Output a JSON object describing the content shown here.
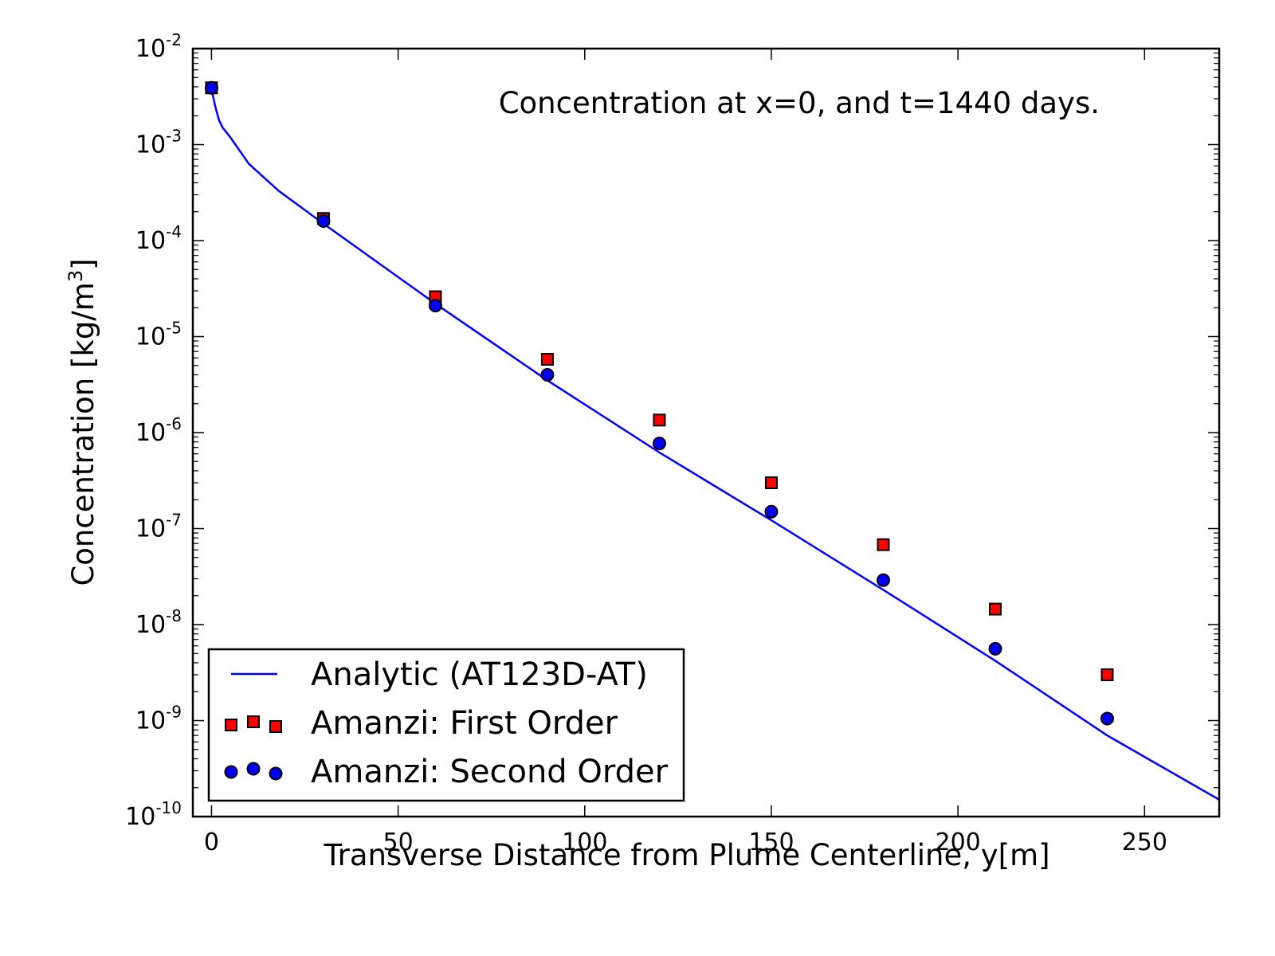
{
  "chart_data": {
    "type": "scatter",
    "annotation": "Concentration at x=0, and t=1440 days.",
    "xlabel": "Transverse Distance from Plume Centerline, y[m]",
    "ylabel": "Concentration [kg/m",
    "ylabel_sup": "3",
    "ylabel_end": "]",
    "xlim": [
      -5,
      270
    ],
    "ylim": [
      1e-10,
      0.01
    ],
    "yscale": "log",
    "x_ticks": [
      0,
      50,
      100,
      150,
      200,
      250
    ],
    "x_tick_labels": [
      "0",
      "50",
      "100",
      "150",
      "200",
      "250"
    ],
    "y_ticks": [
      {
        "value": 0.01,
        "base": "10",
        "exp": "-2"
      },
      {
        "value": 0.001,
        "base": "10",
        "exp": "-3"
      },
      {
        "value": 0.0001,
        "base": "10",
        "exp": "-4"
      },
      {
        "value": 1e-05,
        "base": "10",
        "exp": "-5"
      },
      {
        "value": 1e-06,
        "base": "10",
        "exp": "-6"
      },
      {
        "value": 1e-07,
        "base": "10",
        "exp": "-7"
      },
      {
        "value": 1e-08,
        "base": "10",
        "exp": "-8"
      },
      {
        "value": 1e-09,
        "base": "10",
        "exp": "-9"
      },
      {
        "value": 1e-10,
        "base": "10",
        "exp": "-10"
      }
    ],
    "grid": false,
    "legend_position": "lower-left",
    "series": [
      {
        "name": "Analytic (AT123D-AT)",
        "kind": "line",
        "color": "#0000ff",
        "x": [
          0,
          1,
          2,
          3,
          5,
          10,
          18,
          30,
          60,
          90,
          120,
          150,
          180,
          210,
          240,
          270
        ],
        "y": [
          0.0038,
          0.0025,
          0.0018,
          0.0015,
          0.0012,
          0.00063,
          0.00033,
          0.00015,
          2.2e-05,
          3.5e-06,
          6.2e-07,
          1.22e-07,
          2.3e-08,
          4.2e-09,
          7e-10,
          1.5e-10
        ]
      },
      {
        "name": "Amanzi: First Order",
        "kind": "square",
        "color": "#ff0000",
        "x": [
          0,
          30,
          60,
          90,
          120,
          150,
          180,
          210,
          240
        ],
        "y": [
          0.0039,
          0.00017,
          2.6e-05,
          5.8e-06,
          1.35e-06,
          3e-07,
          6.8e-08,
          1.45e-08,
          3e-09
        ]
      },
      {
        "name": "Amanzi: Second Order",
        "kind": "circle",
        "color": "#0000ff",
        "x": [
          0,
          30,
          60,
          90,
          120,
          150,
          180,
          210,
          240
        ],
        "y": [
          0.0039,
          0.00016,
          2.1e-05,
          4e-06,
          7.7e-07,
          1.5e-07,
          2.9e-08,
          5.6e-09,
          1.05e-09
        ]
      }
    ]
  }
}
